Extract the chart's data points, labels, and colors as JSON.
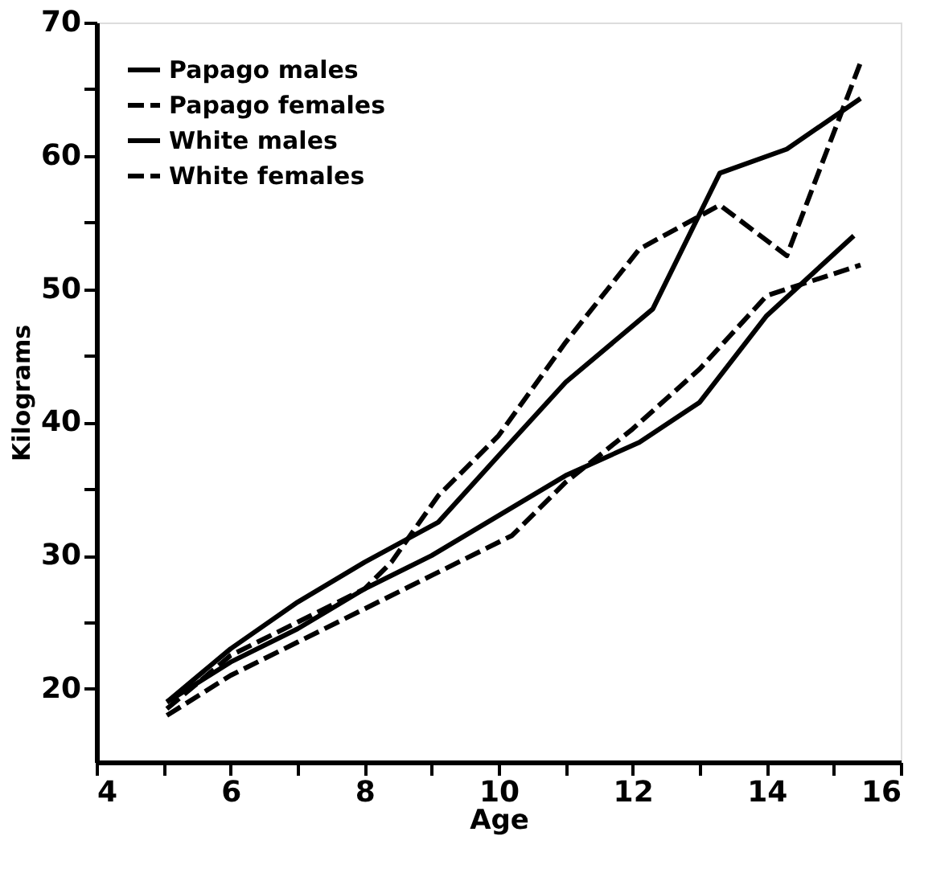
{
  "chart_data": {
    "type": "line",
    "xlabel": "Age",
    "ylabel": "Kilograms",
    "xlim": [
      4,
      16
    ],
    "ylim": [
      14.5,
      70
    ],
    "xticks": [
      4,
      {
        "value": 5,
        "label": null
      },
      6,
      {
        "value": 7,
        "label": null
      },
      8,
      {
        "value": 9,
        "label": null
      },
      10,
      {
        "value": 11,
        "label": null
      },
      12,
      {
        "value": 13,
        "label": null
      },
      14,
      {
        "value": 15,
        "label": null
      },
      16
    ],
    "yticks": [
      20,
      {
        "value": 25,
        "label": null
      },
      30,
      {
        "value": 35,
        "label": null
      },
      40,
      {
        "value": 45,
        "label": null
      },
      50,
      {
        "value": 55,
        "label": null
      },
      60,
      {
        "value": 65,
        "label": null
      },
      70
    ],
    "grid": false,
    "legend": "top left",
    "marker": "none",
    "series": [
      {
        "name": "Papago males",
        "color": "#000000",
        "line_style": "solid",
        "x": [
          5.05,
          6,
          7,
          8,
          9.1,
          10,
          11,
          12.3,
          13.3,
          14.3,
          15.4
        ],
        "values": [
          19,
          23,
          26.5,
          29.5,
          32.5,
          37.5,
          43,
          48.5,
          58.7,
          60.5,
          64.3
        ]
      },
      {
        "name": "Papago females",
        "color": "#000000",
        "line_style": "dashed",
        "x": [
          5.05,
          6,
          7,
          8,
          8.4,
          9.1,
          10,
          11,
          12.1,
          13.3,
          14.3,
          15.4
        ],
        "values": [
          18.5,
          22.5,
          25,
          27.5,
          29.5,
          34.5,
          39,
          46,
          53,
          56.3,
          52.5,
          67
        ]
      },
      {
        "name": "White males",
        "color": "#000000",
        "line_style": "solid",
        "x": [
          5.05,
          6,
          7,
          8,
          9,
          10,
          11,
          12.1,
          13,
          14,
          15.3
        ],
        "values": [
          19,
          22,
          24.5,
          27.5,
          30,
          33,
          36,
          38.5,
          41.5,
          48,
          54
        ]
      },
      {
        "name": "White females",
        "color": "#000000",
        "line_style": "dashed",
        "x": [
          5.05,
          6,
          7,
          8,
          9,
          10.2,
          11,
          12,
          13,
          14,
          15.4
        ],
        "values": [
          18,
          21,
          23.5,
          26,
          28.5,
          31.5,
          35.5,
          39.5,
          44,
          49.5,
          51.8
        ]
      }
    ]
  }
}
